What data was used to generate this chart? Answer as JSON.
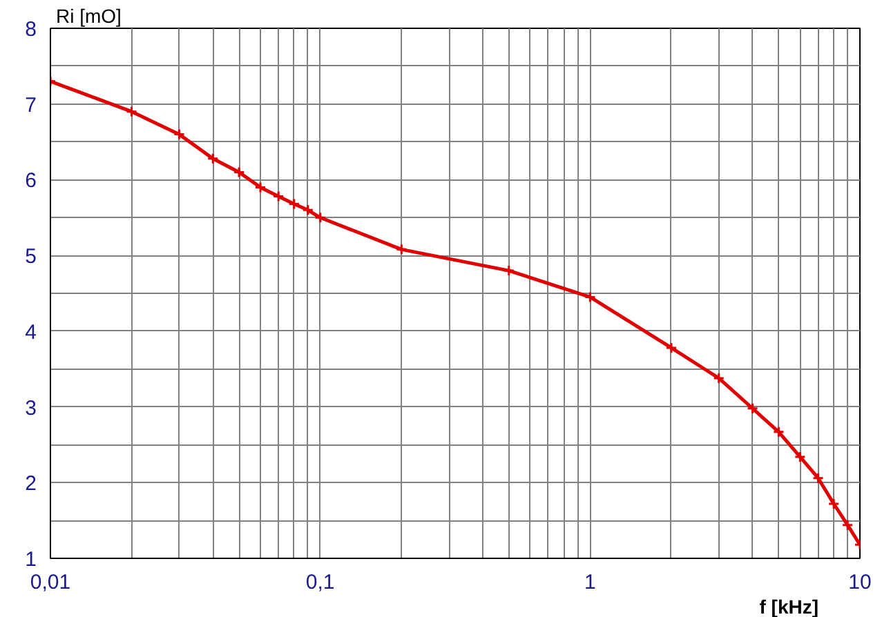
{
  "chart_data": {
    "type": "line",
    "xlabel": "f [kHz]",
    "ylabel": "Ri [mO]",
    "log": "x",
    "grid": true,
    "marker": "cross",
    "line_style": "solid",
    "xlim": [
      0.01,
      10
    ],
    "ylim": [
      1,
      8
    ],
    "xticks": [
      {
        "value": 0.01,
        "label": "0,01"
      },
      {
        "value": 0.02,
        "label": null
      },
      {
        "value": 0.03,
        "label": null
      },
      {
        "value": 0.04,
        "label": null
      },
      {
        "value": 0.05,
        "label": null
      },
      {
        "value": 0.06,
        "label": null
      },
      {
        "value": 0.07,
        "label": null
      },
      {
        "value": 0.08,
        "label": null
      },
      {
        "value": 0.09,
        "label": null
      },
      {
        "value": 0.1,
        "label": "0,1"
      },
      {
        "value": 0.2,
        "label": null
      },
      {
        "value": 0.3,
        "label": null
      },
      {
        "value": 0.4,
        "label": null
      },
      {
        "value": 0.5,
        "label": null
      },
      {
        "value": 0.6,
        "label": null
      },
      {
        "value": 0.7,
        "label": null
      },
      {
        "value": 0.8,
        "label": null
      },
      {
        "value": 0.9,
        "label": null
      },
      1,
      {
        "value": 2,
        "label": null
      },
      {
        "value": 3,
        "label": null
      },
      {
        "value": 4,
        "label": null
      },
      {
        "value": 5,
        "label": null
      },
      {
        "value": 6,
        "label": null
      },
      {
        "value": 7,
        "label": null
      },
      {
        "value": 8,
        "label": null
      },
      {
        "value": 9,
        "label": null
      },
      10
    ],
    "yticks": [
      1,
      {
        "value": 1.5,
        "label": null
      },
      2,
      {
        "value": 2.5,
        "label": null
      },
      3,
      {
        "value": 3.5,
        "label": null
      },
      4,
      {
        "value": 4.5,
        "label": null
      },
      5,
      {
        "value": 5.5,
        "label": null
      },
      6,
      {
        "value": 6.5,
        "label": null
      },
      7,
      {
        "value": 7.5,
        "label": null
      },
      8
    ],
    "x": [
      0.01,
      0.02,
      0.03,
      0.04,
      0.05,
      0.06,
      0.07,
      0.08,
      0.09,
      0.1,
      0.2,
      0.5,
      1,
      2,
      3,
      4,
      5,
      6,
      7,
      8,
      9,
      10
    ],
    "series": [
      {
        "color": "#e00000",
        "values": [
          7.3,
          6.9,
          6.6,
          6.28,
          6.1,
          5.9,
          5.78,
          5.68,
          5.6,
          5.5,
          5.08,
          4.8,
          4.45,
          3.78,
          3.38,
          2.98,
          2.67,
          2.34,
          2.06,
          1.72,
          1.44,
          1.18
        ]
      }
    ]
  }
}
